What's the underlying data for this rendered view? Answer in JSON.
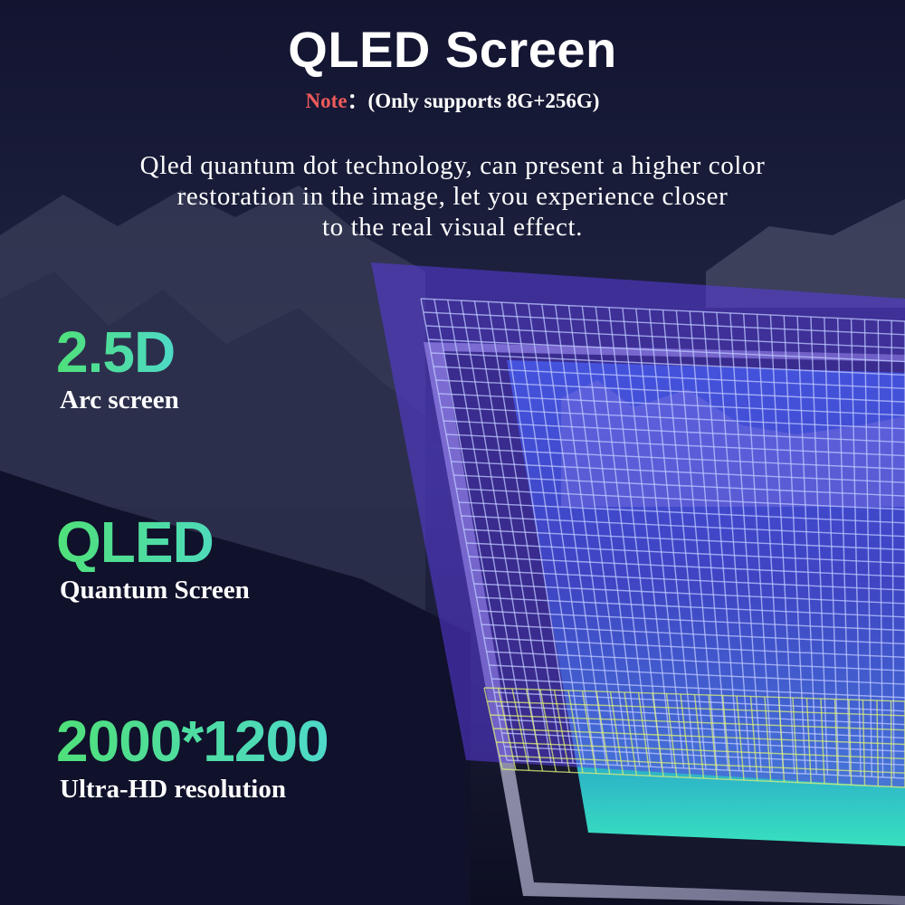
{
  "header": {
    "title": "QLED Screen",
    "note_label": "Note",
    "note_text": "：(Only supports 8G+256G)"
  },
  "description": {
    "lines": [
      "Qled quantum dot technology, can present a higher color",
      "restoration in the image, let you experience closer",
      "to the real visual effect."
    ]
  },
  "features": [
    {
      "heading": "2.5D",
      "subtitle": "Arc screen"
    },
    {
      "heading": "QLED",
      "subtitle": "Quantum Screen"
    },
    {
      "heading": "2000*1200",
      "subtitle": "Ultra-HD resolution"
    }
  ]
}
